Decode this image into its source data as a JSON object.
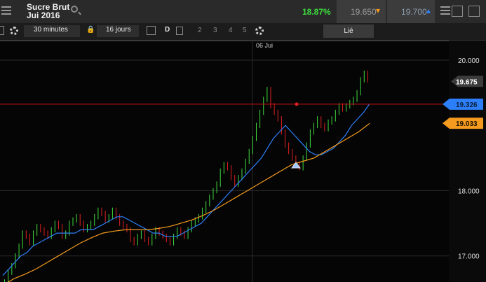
{
  "instrument": {
    "line1": "Sucre Brut",
    "line2": "Jui 2016"
  },
  "quote": {
    "change": "18.87%",
    "sell": "19.650",
    "buy": "19.700"
  },
  "toolbar": {
    "interval": "30 minutes",
    "range": "16 jours",
    "d_label": "D",
    "pages": [
      "2",
      "3",
      "4",
      "5"
    ],
    "link_label": "Lié"
  },
  "icons": {
    "menu": "menu-icon",
    "search": "search-icon",
    "gear": "gear-icon",
    "lock": "lock-icon",
    "calendar": "calendar-icon"
  },
  "colors": {
    "up": "#3ddc3d",
    "down": "#e02020",
    "ma_fast": "#2d7ff9",
    "ma_slow": "#f39a1f",
    "alert": "#d01010"
  },
  "chart_data": {
    "type": "candlestick",
    "x_labels": [
      "06 Jui"
    ],
    "y_ticks": [
      "20.000",
      "18.000",
      "17.000"
    ],
    "price_labels": {
      "last": "19.675",
      "alert": "19.326",
      "ma": "19.033"
    },
    "ylim": [
      16.6,
      20.3
    ],
    "close": [
      16.6,
      16.75,
      16.85,
      17.0,
      17.15,
      17.35,
      17.3,
      17.2,
      17.35,
      17.45,
      17.4,
      17.35,
      17.3,
      17.4,
      17.5,
      17.45,
      17.3,
      17.35,
      17.5,
      17.55,
      17.6,
      17.5,
      17.4,
      17.45,
      17.5,
      17.6,
      17.7,
      17.65,
      17.55,
      17.6,
      17.7,
      17.6,
      17.5,
      17.45,
      17.4,
      17.25,
      17.2,
      17.3,
      17.35,
      17.25,
      17.2,
      17.3,
      17.4,
      17.35,
      17.3,
      17.25,
      17.2,
      17.3,
      17.4,
      17.35,
      17.3,
      17.4,
      17.5,
      17.55,
      17.6,
      17.7,
      17.8,
      17.9,
      18.0,
      18.1,
      18.3,
      18.4,
      18.35,
      18.2,
      18.1,
      18.2,
      18.3,
      18.45,
      18.6,
      18.8,
      19.0,
      19.2,
      19.4,
      19.55,
      19.3,
      19.2,
      19.1,
      18.9,
      18.7,
      18.6,
      18.5,
      18.4,
      18.35,
      18.5,
      18.7,
      18.9,
      19.0,
      19.1,
      19.0,
      18.95,
      19.05,
      19.1,
      19.2,
      19.3,
      19.25,
      19.3,
      19.35,
      19.4,
      19.5,
      19.7,
      19.8,
      19.7
    ],
    "ma_fast": [
      16.7,
      16.8,
      16.9,
      17.0,
      17.05,
      17.15,
      17.2,
      17.25,
      17.3,
      17.35,
      17.35,
      17.35,
      17.35,
      17.4,
      17.4,
      17.4,
      17.45,
      17.5,
      17.55,
      17.6,
      17.6,
      17.55,
      17.5,
      17.45,
      17.4,
      17.35,
      17.35,
      17.3,
      17.3,
      17.3,
      17.35,
      17.4,
      17.45,
      17.5,
      17.6,
      17.7,
      17.8,
      17.9,
      18.0,
      18.1,
      18.2,
      18.3,
      18.4,
      18.5,
      18.65,
      18.8,
      18.9,
      19.0,
      18.9,
      18.8,
      18.7,
      18.6,
      18.55,
      18.55,
      18.6,
      18.65,
      18.75,
      18.85,
      19.0,
      19.1,
      19.2,
      19.33
    ],
    "ma_slow": [
      16.55,
      16.65,
      16.72,
      16.8,
      16.9,
      17.0,
      17.1,
      17.2,
      17.28,
      17.35,
      17.38,
      17.4,
      17.4,
      17.4,
      17.42,
      17.45,
      17.5,
      17.55,
      17.62,
      17.7,
      17.8,
      17.9,
      18.0,
      18.1,
      18.2,
      18.3,
      18.4,
      18.45,
      18.5,
      18.6,
      18.7,
      18.8,
      18.9,
      19.03
    ]
  }
}
